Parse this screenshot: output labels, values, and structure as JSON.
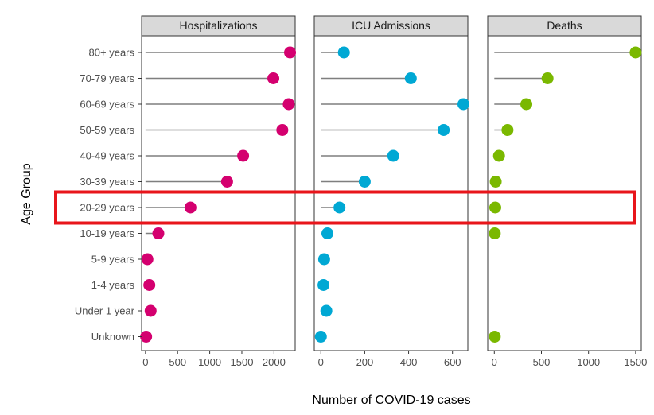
{
  "chart_data": {
    "type": "lollipop",
    "xlabel": "Number of COVID-19 cases",
    "ylabel": "Age Group",
    "categories": [
      "80+ years",
      "70-79 years",
      "60-69 years",
      "50-59 years",
      "40-49 years",
      "30-39 years",
      "20-29 years",
      "10-19 years",
      "5-9 years",
      "1-4 years",
      "Under 1 year",
      "Unknown"
    ],
    "panels": [
      {
        "name": "Hospitalizations",
        "color": "#d4006f",
        "xlim": [
          -60,
          2330
        ],
        "ticks": [
          0,
          500,
          1000,
          1500,
          2000
        ],
        "values": [
          2250,
          1990,
          2230,
          2130,
          1520,
          1270,
          700,
          200,
          30,
          60,
          80,
          10
        ]
      },
      {
        "name": "ICU Admissions",
        "color": "#00a8d4",
        "xlim": [
          -30,
          670
        ],
        "ticks": [
          0,
          200,
          400,
          600
        ],
        "values": [
          105,
          410,
          650,
          560,
          330,
          200,
          85,
          30,
          15,
          12,
          25,
          0
        ]
      },
      {
        "name": "Deaths",
        "color": "#7ab800",
        "xlim": [
          -70,
          1560
        ],
        "ticks": [
          0,
          500,
          1000,
          1500
        ],
        "values": [
          1500,
          565,
          340,
          140,
          50,
          15,
          10,
          5,
          null,
          null,
          null,
          5
        ]
      }
    ],
    "highlight": {
      "category": "20-29 years",
      "color": "#e8151b"
    },
    "grid": false,
    "legend": "none"
  }
}
